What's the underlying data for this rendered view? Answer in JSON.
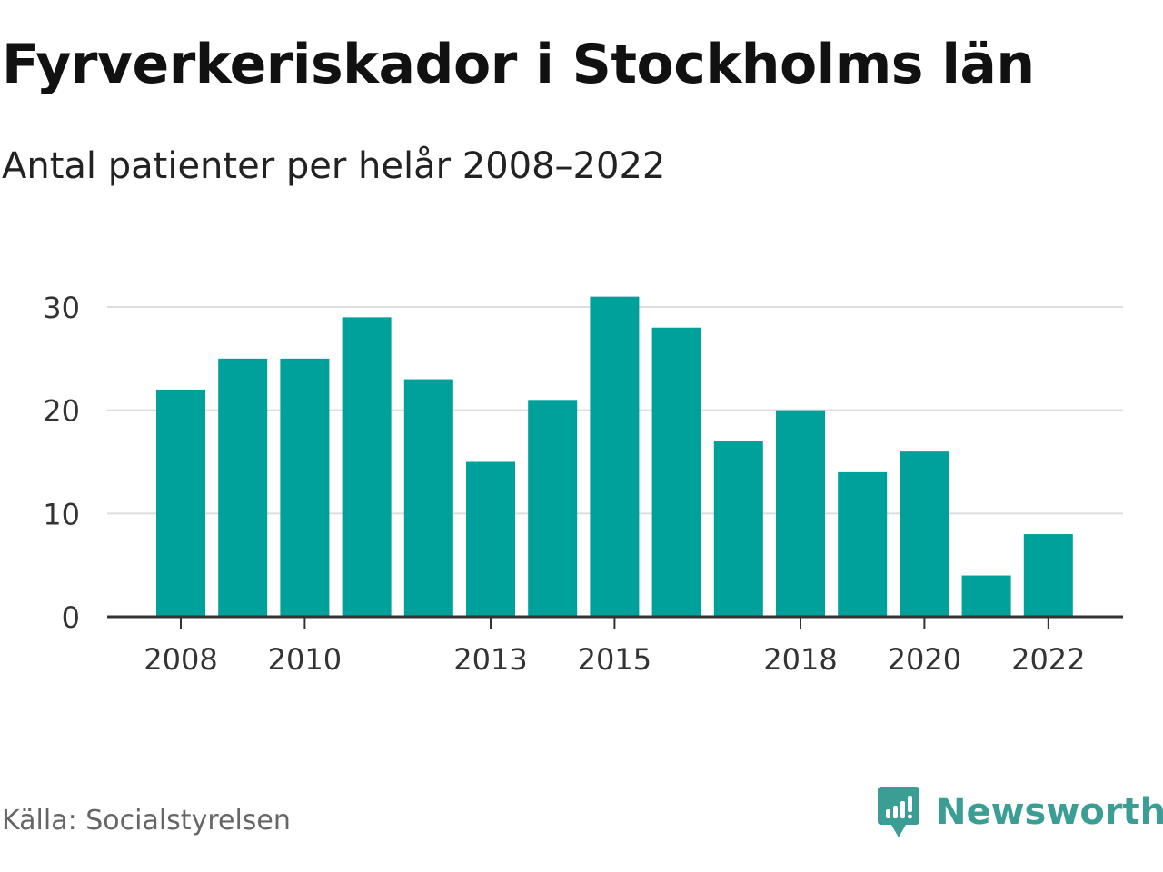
{
  "title": "Fyrverkeriskador i Stockholms län",
  "subtitle": "Antal patienter per helår 2008–2022",
  "source": "Källa: Socialstyrelsen",
  "brand": {
    "name": "Newsworthy",
    "icon": "newsworthy-logo-icon",
    "color": "#3b9e95"
  },
  "chart_data": {
    "type": "bar",
    "x": [
      2008,
      2009,
      2010,
      2011,
      2012,
      2013,
      2014,
      2015,
      2016,
      2017,
      2018,
      2019,
      2020,
      2021,
      2022
    ],
    "values": [
      22,
      25,
      25,
      29,
      23,
      15,
      21,
      31,
      28,
      17,
      20,
      14,
      16,
      4,
      8
    ],
    "xticks": [
      "2008",
      "2010",
      "2013",
      "2015",
      "2018",
      "2020",
      "2022"
    ],
    "yticks": [
      "0",
      "10",
      "20",
      "30"
    ],
    "ylim": [
      0,
      30
    ],
    "grid": true,
    "bar_color": "#00a19a"
  }
}
